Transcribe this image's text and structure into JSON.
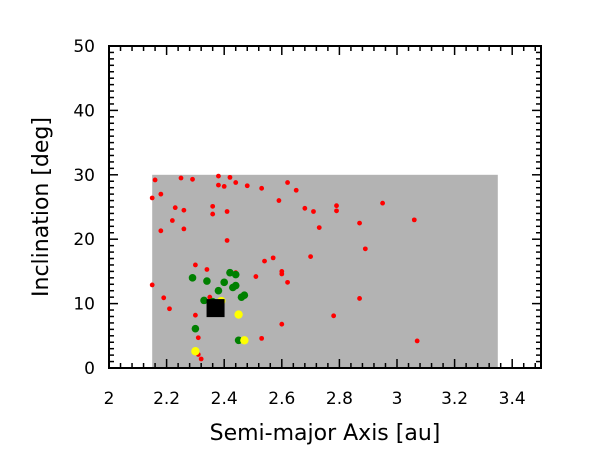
{
  "chart_data": {
    "type": "scatter",
    "title": "",
    "xlabel": "Semi-major Axis [au]",
    "ylabel": "Inclination [deg]",
    "xlim": [
      2.0,
      3.5
    ],
    "ylim": [
      0,
      50
    ],
    "x_ticks": [
      "2",
      "2.2",
      "2.4",
      "2.6",
      "2.8",
      "3",
      "3.2",
      "3.4"
    ],
    "y_ticks": [
      "0",
      "10",
      "20",
      "30",
      "40",
      "50"
    ],
    "grid": false,
    "shaded_region": {
      "x": [
        2.15,
        3.35
      ],
      "y": [
        0,
        30
      ],
      "color": "#b3b3b3"
    },
    "colors": {
      "red": "#ff0000",
      "green": "#008000",
      "yellow": "#ffff00",
      "black": "#000000"
    },
    "series": [
      {
        "color": "red",
        "points": [
          [
            2.16,
            29.2
          ],
          [
            2.15,
            26.4
          ],
          [
            2.18,
            27.0
          ],
          [
            2.18,
            21.3
          ],
          [
            2.15,
            12.9
          ],
          [
            2.19,
            10.9
          ],
          [
            2.21,
            9.2
          ],
          [
            2.23,
            24.9
          ],
          [
            2.22,
            22.9
          ],
          [
            2.26,
            24.5
          ],
          [
            2.26,
            21.6
          ],
          [
            2.25,
            29.5
          ],
          [
            2.29,
            29.3
          ],
          [
            2.3,
            16.0
          ],
          [
            2.34,
            15.3
          ],
          [
            2.36,
            23.9
          ],
          [
            2.36,
            25.1
          ],
          [
            2.38,
            29.8
          ],
          [
            2.38,
            28.4
          ],
          [
            2.4,
            28.2
          ],
          [
            2.42,
            29.6
          ],
          [
            2.44,
            28.8
          ],
          [
            2.41,
            24.3
          ],
          [
            2.41,
            19.8
          ],
          [
            2.44,
            14.8
          ],
          [
            2.48,
            28.3
          ],
          [
            2.53,
            27.9
          ],
          [
            2.57,
            17.1
          ],
          [
            2.54,
            16.6
          ],
          [
            2.51,
            14.2
          ],
          [
            2.59,
            26.0
          ],
          [
            2.62,
            28.8
          ],
          [
            2.65,
            27.6
          ],
          [
            2.6,
            15.0
          ],
          [
            2.6,
            14.6
          ],
          [
            2.62,
            13.3
          ],
          [
            2.68,
            24.8
          ],
          [
            2.71,
            24.3
          ],
          [
            2.73,
            21.8
          ],
          [
            2.7,
            17.3
          ],
          [
            2.79,
            25.2
          ],
          [
            2.79,
            24.4
          ],
          [
            2.87,
            22.5
          ],
          [
            2.89,
            18.5
          ],
          [
            2.87,
            10.8
          ],
          [
            2.78,
            8.1
          ],
          [
            2.6,
            6.8
          ],
          [
            2.53,
            4.6
          ],
          [
            2.31,
            4.7
          ],
          [
            2.31,
            2.1
          ],
          [
            2.32,
            1.4
          ],
          [
            2.95,
            25.6
          ],
          [
            3.06,
            23.0
          ],
          [
            3.07,
            4.2
          ],
          [
            2.3,
            8.2
          ],
          [
            2.35,
            11.0
          ]
        ]
      },
      {
        "color": "green",
        "points": [
          [
            2.29,
            14.0
          ],
          [
            2.34,
            13.5
          ],
          [
            2.4,
            13.3
          ],
          [
            2.38,
            12.0
          ],
          [
            2.42,
            14.8
          ],
          [
            2.44,
            14.5
          ],
          [
            2.43,
            12.5
          ],
          [
            2.44,
            12.8
          ],
          [
            2.33,
            10.5
          ],
          [
            2.36,
            10.3
          ],
          [
            2.46,
            11.0
          ],
          [
            2.47,
            11.3
          ],
          [
            2.3,
            6.1
          ],
          [
            2.45,
            4.3
          ]
        ]
      },
      {
        "color": "yellow",
        "points": [
          [
            2.39,
            10.4
          ],
          [
            2.45,
            8.3
          ],
          [
            2.47,
            4.3
          ],
          [
            2.3,
            2.6
          ]
        ]
      },
      {
        "color": "black",
        "marker": "square",
        "points": [
          [
            2.37,
            9.3
          ]
        ]
      }
    ]
  }
}
